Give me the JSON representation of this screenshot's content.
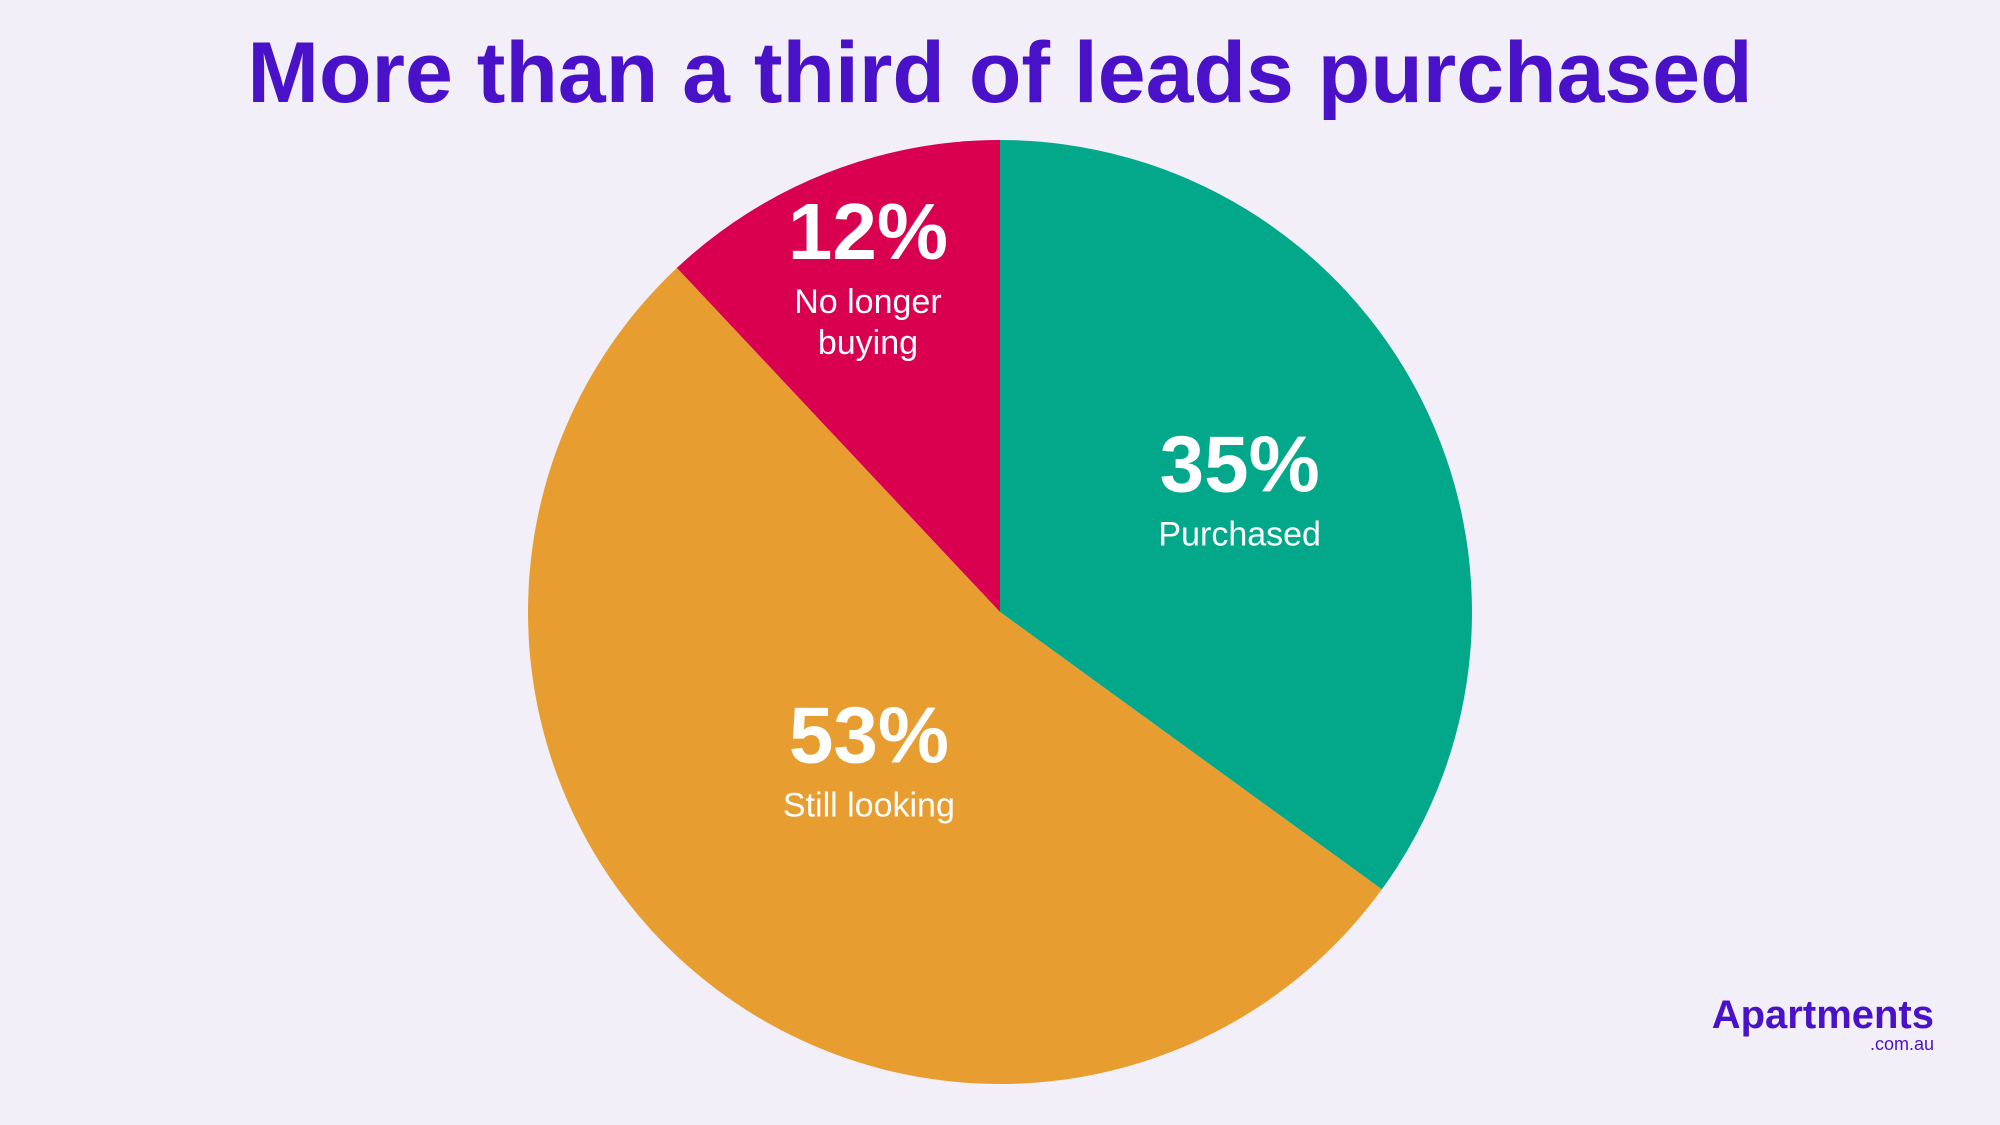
{
  "chart_data": {
    "type": "pie",
    "title": "More than a third of leads purchased",
    "categories": [
      "Purchased",
      "Still looking",
      "No longer buying"
    ],
    "values": [
      35,
      53,
      12
    ],
    "value_labels": [
      "35%",
      "53%",
      "12%"
    ],
    "colors": [
      "#03a88a",
      "#e89d31",
      "#d9004f"
    ]
  },
  "logo": {
    "name": "Apartments",
    "domain": ".com.au"
  }
}
